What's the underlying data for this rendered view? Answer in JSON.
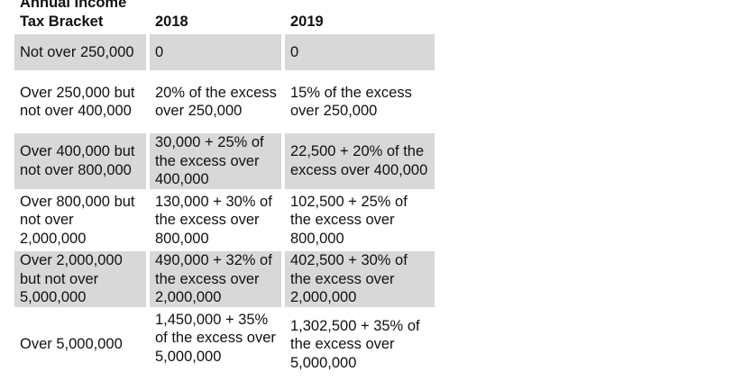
{
  "table": {
    "headers": [
      "Annual Income Tax Bracket",
      "2018",
      "2019"
    ],
    "rows": [
      [
        "Not over 250,000",
        "0",
        "0"
      ],
      [
        "Over  250,000 but not over 400,000",
        "20% of the excess over 250,000",
        "15% of the excess over 250,000"
      ],
      [
        "Over  400,000 but not over 800,000",
        "30,000 + 25% of the excess over 400,000",
        "22,500 + 20% of the excess over 400,000"
      ],
      [
        "Over  800,000 but not over 2,000,000",
        "130,000 + 30% of the excess over  800,000",
        "102,500 + 25% of the excess over 800,000"
      ],
      [
        "Over 2,000,000 but not over 5,000,000",
        "490,000 + 32% of the excess over 2,000,000",
        "402,500 + 30% of the excess over 2,000,000"
      ],
      [
        "Over 5,000,000",
        "1,450,000 + 35% of the excess over 5,000,000",
        "1,302,500 + 35% of the excess over 5,000,000"
      ]
    ]
  }
}
